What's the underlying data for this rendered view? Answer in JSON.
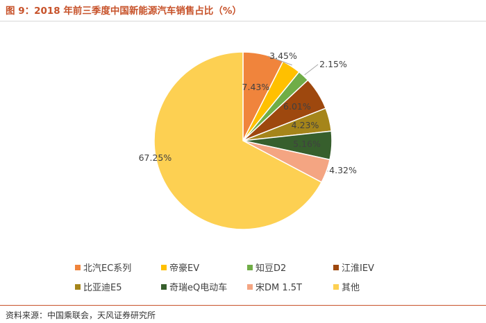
{
  "header": {
    "title": "图 9：2018 年前三季度中国新能源汽车销售占比（%）"
  },
  "footer": {
    "source": "资料来源：中国乘联会，天风证券研究所"
  },
  "chart_data": {
    "type": "pie",
    "title": "",
    "slices": [
      {
        "name": "北汽EC系列",
        "value": 7.43,
        "label": "7.43%",
        "color": "#f0843c"
      },
      {
        "name": "帝豪EV",
        "value": 3.45,
        "label": "3.45%",
        "color": "#ffc000"
      },
      {
        "name": "知豆D2",
        "value": 2.15,
        "label": "2.15%",
        "color": "#70ad47"
      },
      {
        "name": "江淮IEV",
        "value": 6.01,
        "label": "6.01%",
        "color": "#9e480e"
      },
      {
        "name": "比亚迪E5",
        "value": 4.23,
        "label": "4.23%",
        "color": "#a5851a"
      },
      {
        "name": "奇瑞eQ电动车",
        "value": 5.16,
        "label": "5.16%",
        "color": "#375f2d"
      },
      {
        "name": "宋DM 1.5T",
        "value": 4.32,
        "label": "4.32%",
        "color": "#f4a582"
      },
      {
        "name": "其他",
        "value": 67.25,
        "label": "67.25%",
        "color": "#fdd052"
      }
    ],
    "start_angle": "12 o'clock, clockwise",
    "legend_position": "bottom"
  }
}
